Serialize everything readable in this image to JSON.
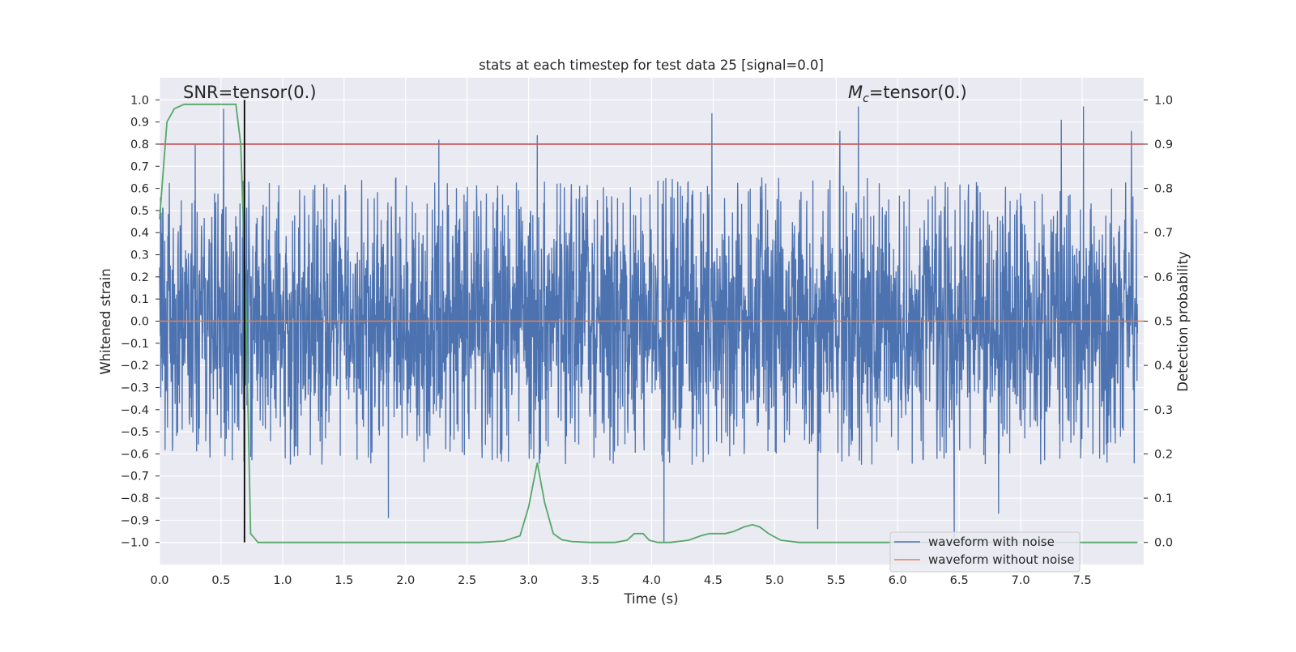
{
  "chart_data": {
    "type": "line",
    "title": "stats at each timestep for test data 25 [signal=0.0]",
    "xlabel": "Time (s)",
    "ylabel_left": "Whitened strain",
    "ylabel_right": "Detection probability",
    "xlim": [
      0,
      8.0
    ],
    "ylim_left": [
      -1.1,
      1.1
    ],
    "ylim_right": [
      -0.05,
      1.05
    ],
    "x_ticks": [
      "0.0",
      "0.5",
      "1.0",
      "1.5",
      "2.0",
      "2.5",
      "3.0",
      "3.5",
      "4.0",
      "4.5",
      "5.0",
      "5.5",
      "6.0",
      "6.5",
      "7.0",
      "7.5"
    ],
    "y_left_ticks": [
      "1.0",
      "0.9",
      "0.8",
      "0.7",
      "0.6",
      "0.5",
      "0.4",
      "0.3",
      "0.2",
      "0.1",
      "0.0",
      "−0.1",
      "−0.2",
      "−0.3",
      "−0.4",
      "−0.5",
      "−0.6",
      "−0.7",
      "−0.8",
      "−0.9",
      "−1.0"
    ],
    "y_right_ticks": [
      "1.0",
      "0.9",
      "0.8",
      "0.7",
      "0.6",
      "0.5",
      "0.4",
      "0.3",
      "0.2",
      "0.1",
      "0.0"
    ],
    "annotations": {
      "snr": "SNR=tensor(0.)",
      "mc_symbol": "M",
      "mc_sub": "c",
      "mc_value": "=tensor(0.)"
    },
    "threshold": 0.9,
    "event_marker_x": 0.69,
    "legend": {
      "placement": "bottom-right",
      "entries": [
        "waveform with noise",
        "waveform without noise"
      ]
    },
    "colors": {
      "with_noise": "#4c72b0",
      "without_noise": "#dd8452",
      "probability": "#55a868",
      "threshold": "#c44e52",
      "marker": "#000000",
      "background": "#eaeaf2",
      "grid": "#ffffff"
    },
    "series": [
      {
        "name": "waveform with noise",
        "axis": "left",
        "description": "dense whitened noise spanning roughly -0.45 to 0.4",
        "typical_min": -0.45,
        "typical_max": 0.4,
        "spikes": [
          {
            "x": 0.52,
            "y": 0.96
          },
          {
            "x": 0.29,
            "y": 0.8
          },
          {
            "x": 2.27,
            "y": 0.82
          },
          {
            "x": 3.07,
            "y": 0.84
          },
          {
            "x": 4.49,
            "y": 0.94
          },
          {
            "x": 5.53,
            "y": 0.86
          },
          {
            "x": 5.68,
            "y": 0.97
          },
          {
            "x": 7.33,
            "y": 0.91
          },
          {
            "x": 7.51,
            "y": 0.97
          },
          {
            "x": 7.9,
            "y": 0.86
          },
          {
            "x": 1.86,
            "y": -0.89
          },
          {
            "x": 4.1,
            "y": -1.0
          },
          {
            "x": 6.46,
            "y": -0.98
          },
          {
            "x": 6.82,
            "y": -0.87
          },
          {
            "x": 5.35,
            "y": -0.94
          }
        ]
      },
      {
        "name": "waveform without noise",
        "axis": "left",
        "x": [
          0,
          8.0
        ],
        "y": [
          0,
          0
        ]
      },
      {
        "axis": "right",
        "x": [
          0.0,
          0.06,
          0.12,
          0.2,
          0.3,
          0.4,
          0.5,
          0.57,
          0.62,
          0.66,
          0.7,
          0.74,
          0.8,
          1.0,
          2.0,
          2.6,
          2.8,
          2.93,
          3.0,
          3.07,
          3.13,
          3.2,
          3.27,
          3.35,
          3.5,
          3.7,
          3.8,
          3.86,
          3.93,
          3.98,
          4.05,
          4.15,
          4.3,
          4.4,
          4.47,
          4.53,
          4.6,
          4.67,
          4.75,
          4.82,
          4.88,
          4.95,
          5.05,
          5.2,
          5.6,
          6.0,
          7.0,
          7.95
        ],
        "y": [
          0.73,
          0.95,
          0.98,
          0.99,
          0.99,
          0.99,
          0.99,
          0.99,
          0.99,
          0.9,
          0.56,
          0.02,
          0.0,
          0.0,
          0.0,
          0.0,
          0.003,
          0.015,
          0.08,
          0.18,
          0.09,
          0.02,
          0.006,
          0.002,
          0.0,
          0.0,
          0.005,
          0.02,
          0.02,
          0.005,
          0.0,
          0.0,
          0.005,
          0.015,
          0.02,
          0.02,
          0.02,
          0.025,
          0.035,
          0.04,
          0.035,
          0.02,
          0.005,
          0.0,
          0.0,
          0.0,
          0.0,
          0.0
        ]
      }
    ]
  }
}
